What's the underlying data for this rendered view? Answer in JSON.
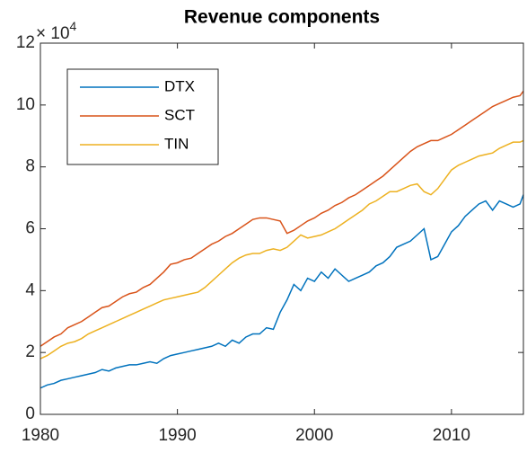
{
  "chart_data": {
    "type": "line",
    "title": "Revenue components",
    "y_multiplier": {
      "base": "× 10",
      "exponent": "4"
    },
    "x": [
      1980,
      1980.5,
      1981,
      1981.5,
      1982,
      1982.5,
      1983,
      1983.5,
      1984,
      1984.5,
      1985,
      1985.5,
      1986,
      1986.5,
      1987,
      1987.5,
      1988,
      1988.5,
      1989,
      1989.5,
      1990,
      1990.5,
      1991,
      1991.5,
      1992,
      1992.5,
      1993,
      1993.5,
      1994,
      1994.5,
      1995,
      1995.5,
      1996,
      1996.5,
      1997,
      1997.5,
      1998,
      1998.5,
      1999,
      1999.5,
      2000,
      2000.5,
      2001,
      2001.5,
      2002,
      2002.5,
      2003,
      2003.5,
      2004,
      2004.5,
      2005,
      2005.5,
      2006,
      2006.5,
      2007,
      2007.5,
      2008,
      2008.5,
      2009,
      2009.5,
      2010,
      2010.5,
      2011,
      2011.5,
      2012,
      2012.5,
      2013,
      2013.5,
      2014,
      2014.5,
      2015,
      2015.25
    ],
    "series": [
      {
        "name": "DTX",
        "color": "#0072BD",
        "values": [
          0.85,
          0.95,
          1.0,
          1.1,
          1.15,
          1.2,
          1.25,
          1.3,
          1.35,
          1.45,
          1.4,
          1.5,
          1.55,
          1.6,
          1.6,
          1.65,
          1.7,
          1.65,
          1.8,
          1.9,
          1.95,
          2.0,
          2.05,
          2.1,
          2.15,
          2.2,
          2.3,
          2.2,
          2.4,
          2.3,
          2.5,
          2.6,
          2.6,
          2.8,
          2.75,
          3.3,
          3.7,
          4.2,
          4.0,
          4.4,
          4.3,
          4.6,
          4.4,
          4.7,
          4.5,
          4.3,
          4.4,
          4.5,
          4.6,
          4.8,
          4.9,
          5.1,
          5.4,
          5.5,
          5.6,
          5.8,
          6.0,
          5.0,
          5.1,
          5.5,
          5.9,
          6.1,
          6.4,
          6.6,
          6.8,
          6.9,
          6.6,
          6.9,
          6.8,
          6.7,
          6.8,
          7.1
        ]
      },
      {
        "name": "SCT",
        "color": "#D95319",
        "values": [
          2.2,
          2.35,
          2.5,
          2.6,
          2.8,
          2.9,
          3.0,
          3.15,
          3.3,
          3.45,
          3.5,
          3.65,
          3.8,
          3.9,
          3.95,
          4.1,
          4.2,
          4.4,
          4.6,
          4.85,
          4.9,
          5.0,
          5.05,
          5.2,
          5.35,
          5.5,
          5.6,
          5.75,
          5.85,
          6.0,
          6.15,
          6.3,
          6.35,
          6.35,
          6.3,
          6.25,
          5.85,
          5.95,
          6.1,
          6.25,
          6.35,
          6.5,
          6.6,
          6.75,
          6.85,
          7.0,
          7.1,
          7.25,
          7.4,
          7.55,
          7.7,
          7.9,
          8.1,
          8.3,
          8.5,
          8.65,
          8.75,
          8.85,
          8.85,
          8.95,
          9.05,
          9.2,
          9.35,
          9.5,
          9.65,
          9.8,
          9.95,
          10.05,
          10.15,
          10.25,
          10.3,
          10.45
        ]
      },
      {
        "name": "TIN",
        "color": "#EDB120",
        "values": [
          1.8,
          1.9,
          2.05,
          2.2,
          2.3,
          2.35,
          2.45,
          2.6,
          2.7,
          2.8,
          2.9,
          3.0,
          3.1,
          3.2,
          3.3,
          3.4,
          3.5,
          3.6,
          3.7,
          3.75,
          3.8,
          3.85,
          3.9,
          3.95,
          4.1,
          4.3,
          4.5,
          4.7,
          4.9,
          5.05,
          5.15,
          5.2,
          5.2,
          5.3,
          5.35,
          5.3,
          5.4,
          5.6,
          5.8,
          5.7,
          5.75,
          5.8,
          5.9,
          6.0,
          6.15,
          6.3,
          6.45,
          6.6,
          6.8,
          6.9,
          7.05,
          7.2,
          7.2,
          7.3,
          7.4,
          7.45,
          7.2,
          7.1,
          7.3,
          7.6,
          7.9,
          8.05,
          8.15,
          8.25,
          8.35,
          8.4,
          8.45,
          8.6,
          8.7,
          8.8,
          8.8,
          8.85
        ]
      }
    ],
    "xlim": [
      1980,
      2015.25
    ],
    "xticks": [
      1980,
      1990,
      2000,
      2010
    ],
    "ylim": [
      0,
      12
    ],
    "yticks": [
      0,
      2,
      4,
      6,
      8,
      10,
      12
    ],
    "legend": "upper left",
    "grid": false
  }
}
